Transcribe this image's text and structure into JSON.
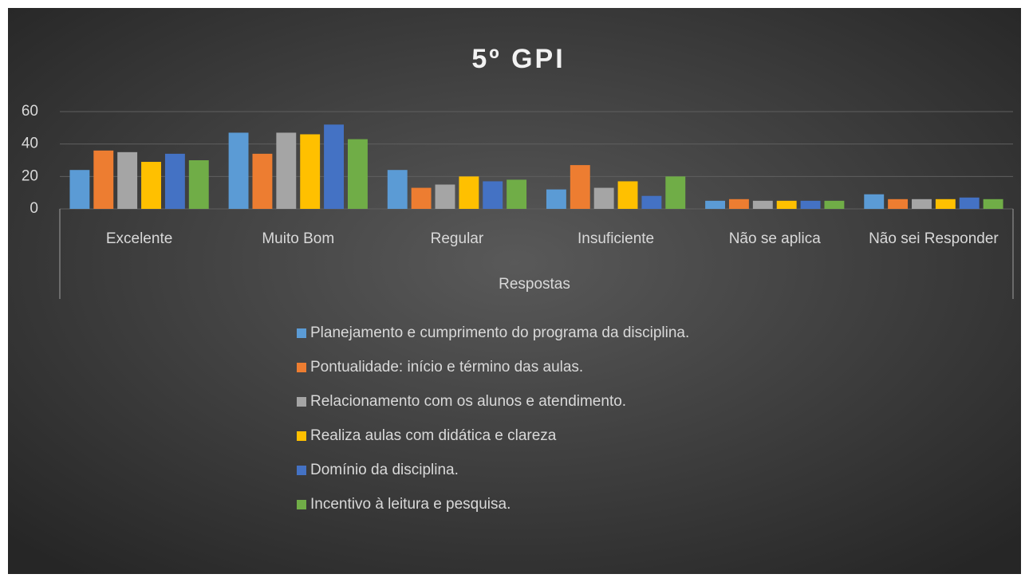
{
  "chart_data": {
    "type": "bar",
    "title": "5º GPI",
    "x_label": "Respostas",
    "categories": [
      "Excelente",
      "Muito Bom",
      "Regular",
      "Insuficiente",
      "Não se aplica",
      "Não sei Responder"
    ],
    "series": [
      {
        "name": "Planejamento e cumprimento do programa da disciplina.",
        "color": "#5b9bd5",
        "values": [
          24,
          47,
          24,
          12,
          5,
          9
        ]
      },
      {
        "name": "Pontualidade: início e término das aulas.",
        "color": "#ed7d31",
        "values": [
          36,
          34,
          13,
          27,
          6,
          6
        ]
      },
      {
        "name": "Relacionamento com os alunos e atendimento.",
        "color": "#a5a5a5",
        "values": [
          35,
          47,
          15,
          13,
          5,
          6
        ]
      },
      {
        "name": "Realiza aulas com didática e clareza",
        "color": "#ffc000",
        "values": [
          29,
          46,
          20,
          17,
          5,
          6
        ]
      },
      {
        "name": "Domínio da disciplina.",
        "color": "#4472c4",
        "values": [
          34,
          52,
          17,
          8,
          5,
          7
        ]
      },
      {
        "name": "Incentivo à leitura e pesquisa.",
        "color": "#70ad47",
        "values": [
          30,
          43,
          18,
          20,
          5,
          6
        ]
      }
    ],
    "ylim": [
      0,
      60
    ],
    "yticks": [
      0,
      20,
      40,
      60
    ],
    "grid": true,
    "legend": "bottom"
  }
}
